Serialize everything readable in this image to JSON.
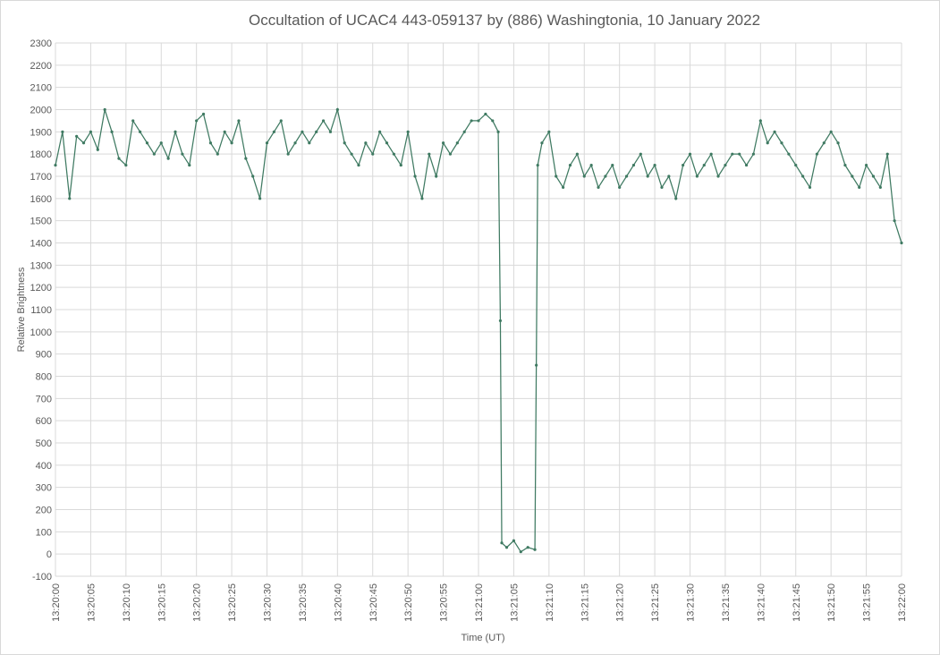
{
  "chart_data": {
    "type": "line",
    "title": "Occultation of UCAC4 443-059137 by (886) Washingtonia, 10 January 2022",
    "xlabel": "Time (UT)",
    "ylabel": "Relative Brightness",
    "x": [
      "13:20:00",
      "13:20:01",
      "13:20:02",
      "13:20:03",
      "13:20:04",
      "13:20:05",
      "13:20:06",
      "13:20:07",
      "13:20:08",
      "13:20:09",
      "13:20:10",
      "13:20:11",
      "13:20:12",
      "13:20:13",
      "13:20:14",
      "13:20:15",
      "13:20:16",
      "13:20:17",
      "13:20:18",
      "13:20:19",
      "13:20:20",
      "13:20:21",
      "13:20:22",
      "13:20:23",
      "13:20:24",
      "13:20:25",
      "13:20:26",
      "13:20:27",
      "13:20:28",
      "13:20:29",
      "13:20:30",
      "13:20:31",
      "13:20:32",
      "13:20:33",
      "13:20:34",
      "13:20:35",
      "13:20:36",
      "13:20:37",
      "13:20:38",
      "13:20:39",
      "13:20:40",
      "13:20:41",
      "13:20:42",
      "13:20:43",
      "13:20:44",
      "13:20:45",
      "13:20:46",
      "13:20:47",
      "13:20:48",
      "13:20:49",
      "13:20:50",
      "13:20:51",
      "13:20:52",
      "13:20:53",
      "13:20:54",
      "13:20:55",
      "13:20:56",
      "13:20:57",
      "13:20:58",
      "13:20:59",
      "13:21:00",
      "13:21:01",
      "13:21:02",
      "13:21:02.8",
      "13:21:03.1",
      "13:21:03.3",
      "13:21:04",
      "13:21:05",
      "13:21:06",
      "13:21:07",
      "13:21:08",
      "13:21:08.2",
      "13:21:08.4",
      "13:21:09",
      "13:21:10",
      "13:21:11",
      "13:21:12",
      "13:21:13",
      "13:21:14",
      "13:21:15",
      "13:21:16",
      "13:21:17",
      "13:21:18",
      "13:21:19",
      "13:21:20",
      "13:21:21",
      "13:21:22",
      "13:21:23",
      "13:21:24",
      "13:21:25",
      "13:21:26",
      "13:21:27",
      "13:21:28",
      "13:21:29",
      "13:21:30",
      "13:21:31",
      "13:21:32",
      "13:21:33",
      "13:21:34",
      "13:21:35",
      "13:21:36",
      "13:21:37",
      "13:21:38",
      "13:21:39",
      "13:21:40",
      "13:21:41",
      "13:21:42",
      "13:21:43",
      "13:21:44",
      "13:21:45",
      "13:21:46",
      "13:21:47",
      "13:21:48",
      "13:21:49",
      "13:21:50",
      "13:21:51",
      "13:21:52",
      "13:21:53",
      "13:21:54",
      "13:21:55",
      "13:21:56",
      "13:21:57",
      "13:21:58",
      "13:21:59",
      "13:22:00"
    ],
    "series": [
      {
        "name": "Relative Brightness",
        "color": "#3f7a62",
        "values": [
          1750,
          1900,
          1600,
          1880,
          1850,
          1900,
          1820,
          2000,
          1900,
          1780,
          1750,
          1950,
          1900,
          1850,
          1800,
          1850,
          1780,
          1900,
          1800,
          1750,
          1950,
          1980,
          1850,
          1800,
          1900,
          1850,
          1950,
          1780,
          1700,
          1600,
          1850,
          1900,
          1950,
          1800,
          1850,
          1900,
          1850,
          1900,
          1950,
          1900,
          2000,
          1850,
          1800,
          1750,
          1850,
          1800,
          1900,
          1850,
          1800,
          1750,
          1900,
          1700,
          1600,
          1800,
          1700,
          1850,
          1800,
          1850,
          1900,
          1950,
          1950,
          1980,
          1950,
          1900,
          1050,
          50,
          30,
          60,
          10,
          30,
          20,
          850,
          1750,
          1850,
          1900,
          1700,
          1650,
          1750,
          1800,
          1700,
          1750,
          1650,
          1700,
          1750,
          1650,
          1700,
          1750,
          1800,
          1700,
          1750,
          1650,
          1700,
          1600,
          1750,
          1800,
          1700,
          1750,
          1800,
          1700,
          1750,
          1800,
          1800,
          1750,
          1800,
          1950,
          1850,
          1900,
          1850,
          1800,
          1750,
          1700,
          1650,
          1800,
          1850,
          1900,
          1850,
          1750,
          1700,
          1650,
          1750,
          1700,
          1650,
          1800,
          1500,
          1400
        ]
      }
    ],
    "xlim": [
      "13:20:00",
      "13:22:00"
    ],
    "xticks": [
      "13:20:00",
      "13:20:05",
      "13:20:10",
      "13:20:15",
      "13:20:20",
      "13:20:25",
      "13:20:30",
      "13:20:35",
      "13:20:40",
      "13:20:45",
      "13:20:50",
      "13:20:55",
      "13:21:00",
      "13:21:05",
      "13:21:10",
      "13:21:15",
      "13:21:20",
      "13:21:25",
      "13:21:30",
      "13:21:35",
      "13:21:40",
      "13:21:45",
      "13:21:50",
      "13:21:55",
      "13:22:00"
    ],
    "ylim": [
      -100,
      2300
    ],
    "yticks": [
      -100,
      0,
      100,
      200,
      300,
      400,
      500,
      600,
      700,
      800,
      900,
      1000,
      1100,
      1200,
      1300,
      1400,
      1500,
      1600,
      1700,
      1800,
      1900,
      2000,
      2100,
      2200,
      2300
    ],
    "grid": true
  }
}
